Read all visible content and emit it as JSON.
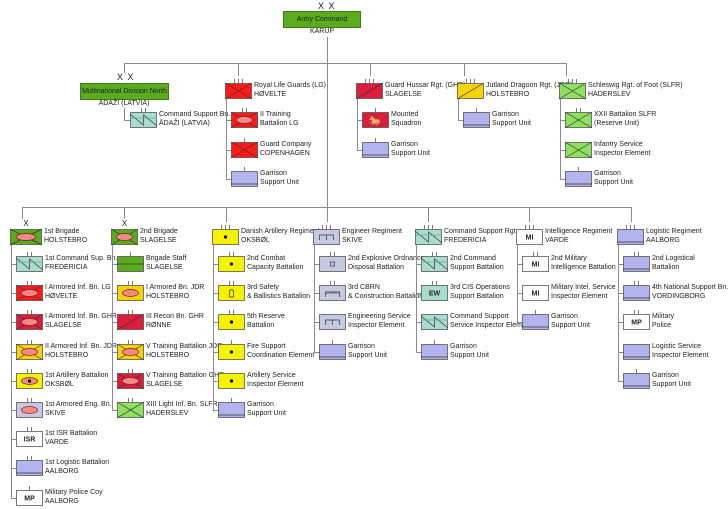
{
  "colors": {
    "hq_green": "#5aac1c",
    "life_guards_red": "#ff1a1a",
    "hussar_crimson": "#dc1e3c",
    "dragoon_yellow": "#f5d30a",
    "foot_green": "#8fe060",
    "signal_teal": "#a9dccf",
    "support_purple": "#b3b3ee",
    "artillery_yellow": "#f5f200",
    "engineer_grey": "#c7c9e2",
    "armor_pink": "#f08a8a"
  },
  "army_command": {
    "name": "Army Command",
    "location": "KARUP",
    "echelon": "X X"
  },
  "upper": [
    {
      "parent": {
        "name": "Multinational Division North",
        "location": "ĀDAŽI (LATVIA)",
        "echelon": "X X"
      },
      "children": [
        {
          "l1": "Command Support Bn.",
          "l2": "ĀDAŽI (LATVIA)",
          "symbol": "signal",
          "color": "#a9dccf",
          "echelon": "II"
        }
      ]
    },
    {
      "parent": {
        "l1": "Royal Life Guards (LG)",
        "l2": "HØVELTE",
        "symbol": "infantry",
        "color": "#ff1a1a",
        "echelon": "III"
      },
      "children": [
        {
          "l1": "II Training",
          "l2": "Battalion LG",
          "symbol": "armored-infantry",
          "color": "#ff1a1a",
          "echelon": "II"
        },
        {
          "l1": "Guard Company",
          "l2": "COPENHAGEN",
          "symbol": "infantry",
          "color": "#ff1a1a",
          "echelon": "I"
        },
        {
          "l1": "Garrison",
          "l2": "Support Unit",
          "symbol": "support",
          "color": "#b3b3ee",
          "echelon": "I"
        }
      ]
    },
    {
      "parent": {
        "l1": "Guard Hussar Rgt. (GHR)",
        "l2": "SLAGELSE",
        "symbol": "recon",
        "color": "#dc1e3c",
        "echelon": "III"
      },
      "children": [
        {
          "l1": "Mounted",
          "l2": "Squadron",
          "symbol": "horse",
          "color": "#dc1e3c",
          "echelon": "I"
        },
        {
          "l1": "Garrison",
          "l2": "Support Unit",
          "symbol": "support",
          "color": "#b3b3ee",
          "echelon": "I"
        }
      ]
    },
    {
      "parent": {
        "l1": "Jutland Dragoon Rgt. (JDR)",
        "l2": "HOLSTEBRO",
        "symbol": "recon",
        "color": "#f5d30a",
        "echelon": "III"
      },
      "children": [
        {
          "l1": "Garrison",
          "l2": "Support Unit",
          "symbol": "support",
          "color": "#b3b3ee",
          "echelon": "I"
        }
      ]
    },
    {
      "parent": {
        "l1": "Schleswig Rgt. of Foot (SLFR)",
        "l2": "HADERSLEV",
        "symbol": "infantry",
        "color": "#8fe060",
        "echelon": "III"
      },
      "children": [
        {
          "l1": "XXII Battalion SLFR",
          "l2": "(Reserve Unit)",
          "symbol": "infantry",
          "color": "#8fe060",
          "echelon": "II"
        },
        {
          "l1": "Infantry Service",
          "l2": "Inspector Element",
          "symbol": "infantry",
          "color": "#8fe060",
          "echelon": ""
        },
        {
          "l1": "Garrison",
          "l2": "Support Unit",
          "symbol": "support",
          "color": "#b3b3ee",
          "echelon": "I"
        }
      ]
    }
  ],
  "lower": [
    {
      "parent": {
        "l1": "1st Brigade",
        "l2": "HOLSTEBRO",
        "symbol": "armored-infantry",
        "color": "#5aac1c",
        "echelon": "X"
      },
      "children": [
        {
          "l1": "1st Command Sup. Bn.",
          "l2": "FREDERICIA",
          "symbol": "signal",
          "color": "#a9dccf",
          "echelon": "II"
        },
        {
          "l1": "I Armored Inf. Bn. LG",
          "l2": "HØVELTE",
          "symbol": "armored-infantry",
          "color": "#ff1a1a",
          "echelon": "II"
        },
        {
          "l1": "I Armored Inf. Bn. GHR",
          "l2": "SLAGELSE",
          "symbol": "armored-infantry",
          "color": "#dc1e3c",
          "echelon": "II"
        },
        {
          "l1": "II Armored Inf. Bn. JDR",
          "l2": "HOLSTEBRO",
          "symbol": "armored-infantry",
          "color": "#f5d30a",
          "echelon": "II"
        },
        {
          "l1": "1st Artillery Battalion",
          "l2": "OKSBØL",
          "symbol": "sp-artillery",
          "color": "#f5f200",
          "echelon": "II"
        },
        {
          "l1": "1st Armored Eng. Bn.",
          "l2": "SKIVE",
          "symbol": "armor",
          "color": "#c7c9e2",
          "echelon": "II"
        },
        {
          "l1": "1st ISR Battalion",
          "l2": "VARDE",
          "symbol": "text",
          "text": "ISR",
          "color": "#ffffff",
          "echelon": "II"
        },
        {
          "l1": "1st Logistic Battalion",
          "l2": "AALBORG",
          "symbol": "support",
          "color": "#b3b3ee",
          "echelon": "II"
        },
        {
          "l1": "Military Police Coy",
          "l2": "AALBORG",
          "symbol": "text",
          "text": "MP",
          "color": "#ffffff",
          "echelon": "I"
        }
      ]
    },
    {
      "parent": {
        "l1": "2nd Brigade",
        "l2": "SLAGELSE",
        "symbol": "armored-infantry",
        "color": "#5aac1c",
        "echelon": "X"
      },
      "children": [
        {
          "l1": "Brigade Staff",
          "l2": "SLAGELSE",
          "symbol": "staff",
          "color": "#5aac1c",
          "echelon": "I"
        },
        {
          "l1": "I Armored Bn. JDR",
          "l2": "HOLSTEBRO",
          "symbol": "armor",
          "color": "#f5d30a",
          "echelon": "II"
        },
        {
          "l1": "III Recon Bn. GHR",
          "l2": "RØNNE",
          "symbol": "recon",
          "color": "#dc1e3c",
          "echelon": "II"
        },
        {
          "l1": "V Training Battalion JDR",
          "l2": "HOLSTEBRO",
          "symbol": "armored-infantry",
          "color": "#f5d30a",
          "echelon": "II"
        },
        {
          "l1": "V Training Battalion GHR",
          "l2": "SLAGELSE",
          "symbol": "armored-infantry",
          "color": "#dc1e3c",
          "echelon": "II"
        },
        {
          "l1": "XIII Light Inf. Bn. SLFR",
          "l2": "HADERSLEV",
          "symbol": "infantry",
          "color": "#8fe060",
          "echelon": "II"
        }
      ]
    },
    {
      "parent": {
        "l1": "Danish Artillery Regiment",
        "l2": "OKSBØL",
        "symbol": "artillery",
        "color": "#f5f200",
        "echelon": "III"
      },
      "children": [
        {
          "l1": "2nd Combat",
          "l2": "Capacity Battalion",
          "symbol": "artillery",
          "color": "#f5f200",
          "echelon": "II"
        },
        {
          "l1": "3rd Safety",
          "l2": "& Ballistics Battalion",
          "symbol": "ballistics",
          "color": "#f5f200",
          "echelon": "II"
        },
        {
          "l1": "5th Reserve",
          "l2": "Battalion",
          "symbol": "artillery",
          "color": "#f5f200",
          "echelon": "II"
        },
        {
          "l1": "Fire Support",
          "l2": "Coordination Element",
          "symbol": "artillery",
          "color": "#f5f200",
          "echelon": "I"
        },
        {
          "l1": "Artillery Service",
          "l2": "Inspector Element",
          "symbol": "artillery",
          "color": "#f5f200",
          "echelon": ""
        },
        {
          "l1": "Garrison",
          "l2": "Support Unit",
          "symbol": "support",
          "color": "#b3b3ee",
          "echelon": "I"
        }
      ]
    },
    {
      "parent": {
        "l1": "Engineer Regiment",
        "l2": "SKIVE",
        "symbol": "engineer",
        "color": "#c7c9e2",
        "echelon": "III"
      },
      "children": [
        {
          "l1": "2nd Explosive Ordnance",
          "l2": "Disposal Battalion",
          "symbol": "eod",
          "color": "#c7c9e2",
          "echelon": "II"
        },
        {
          "l1": "3rd CBRN",
          "l2": "& Construction Battalion",
          "symbol": "cbrn",
          "text": "CONST",
          "color": "#c7c9e2",
          "echelon": "II"
        },
        {
          "l1": "Engineering Service",
          "l2": "Inspector Element",
          "symbol": "engineer",
          "color": "#c7c9e2",
          "echelon": ""
        },
        {
          "l1": "Garrison",
          "l2": "Support Unit",
          "symbol": "support",
          "color": "#b3b3ee",
          "echelon": "I"
        }
      ]
    },
    {
      "parent": {
        "l1": "Command Support Rgt.",
        "l2": "FREDERICIA",
        "symbol": "signal",
        "color": "#a9dccf",
        "echelon": "III"
      },
      "children": [
        {
          "l1": "2nd Command",
          "l2": "Support Battalion",
          "symbol": "signal",
          "color": "#a9dccf",
          "echelon": "II"
        },
        {
          "l1": "3rd CIS Operations",
          "l2": "Support Battalion",
          "symbol": "text",
          "text": "EW",
          "color": "#a9dccf",
          "echelon": "II"
        },
        {
          "l1": "Command Support",
          "l2": "Service Inspector Element",
          "symbol": "signal",
          "color": "#a9dccf",
          "echelon": ""
        },
        {
          "l1": "Garrison",
          "l2": "Support Unit",
          "symbol": "support",
          "color": "#b3b3ee",
          "echelon": "I"
        }
      ]
    },
    {
      "parent": {
        "l1": "Intelligence Regiment",
        "l2": "VARDE",
        "symbol": "text",
        "text": "MI",
        "color": "#ffffff",
        "echelon": "III"
      },
      "children": [
        {
          "l1": "2nd Military",
          "l2": "Intelligence Battalion",
          "symbol": "text",
          "text": "MI",
          "color": "#ffffff",
          "echelon": "II"
        },
        {
          "l1": "Military Intel. Service",
          "l2": "Inspector Element",
          "symbol": "text",
          "text": "MI",
          "color": "#ffffff",
          "echelon": ""
        },
        {
          "l1": "Garrison",
          "l2": "Support Unit",
          "symbol": "support",
          "color": "#b3b3ee",
          "echelon": "I"
        }
      ]
    },
    {
      "parent": {
        "l1": "Logistic Regiment",
        "l2": "AALBORG",
        "symbol": "support",
        "color": "#b3b3ee",
        "echelon": "III"
      },
      "children": [
        {
          "l1": "2nd Logistical",
          "l2": "Battalion",
          "symbol": "support",
          "color": "#b3b3ee",
          "echelon": "II"
        },
        {
          "l1": "4th National Support Bn.",
          "l2": "VORDINGBORG",
          "symbol": "support",
          "color": "#b3b3ee",
          "echelon": "II"
        },
        {
          "l1": "Military",
          "l2": "Police",
          "symbol": "text",
          "text": "MP",
          "color": "#ffffff",
          "echelon": "II"
        },
        {
          "l1": "Logistic Service",
          "l2": "Inspector Element",
          "symbol": "support",
          "color": "#b3b3ee",
          "echelon": ""
        },
        {
          "l1": "Garrison",
          "l2": "Support Unit",
          "symbol": "support",
          "color": "#b3b3ee",
          "echelon": "I"
        }
      ]
    }
  ]
}
